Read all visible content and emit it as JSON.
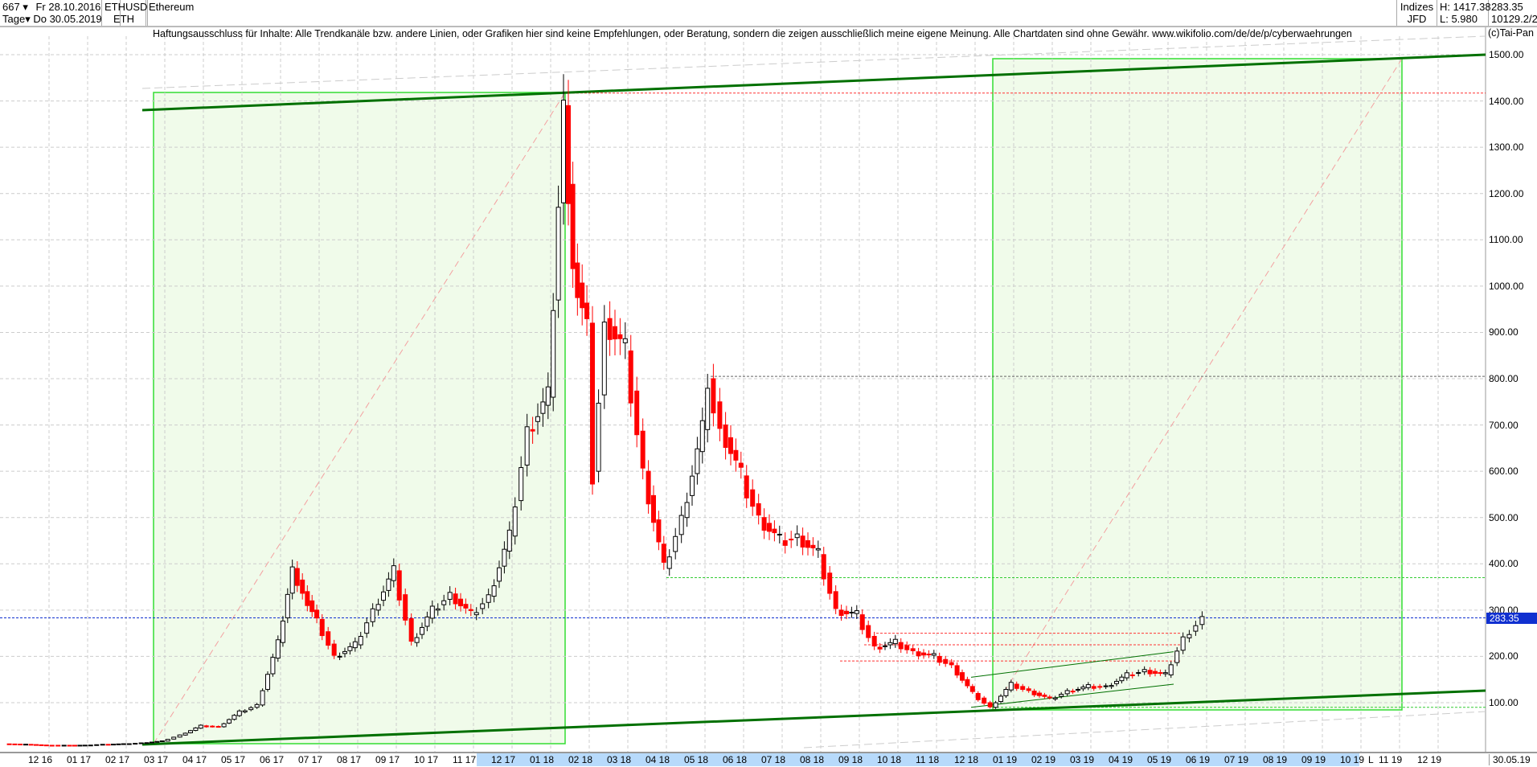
{
  "header": {
    "count": "667",
    "period": "Tage",
    "date_from": "Fr 28.10.2016",
    "date_to": "Do 30.05.2019",
    "symbol": "ETHUSD",
    "symbol_short": "ETH",
    "name": "Ethereum",
    "group": "Indizes",
    "source": "JFD",
    "high": "H: 1417.38",
    "low": "L: 5.980",
    "last": "283.35",
    "extra": "10129.2/2"
  },
  "disclaimer": "Haftungsausschluss für Inhalte: Alle Trendkanäle bzw. andere Linien, oder Grafiken hier sind keine Empfehlungen, oder Beratung, sondern die zeigen ausschließlich meine eigene Meinung. Alle Chartdaten sind ohne Gewähr.  www.wikifolio.com/de/de/p/cyberwaehrungen",
  "copyright": "(c)Tai-Pan",
  "footer": {
    "scale_mode": "L",
    "last_date": "30.05.19"
  },
  "colors": {
    "up": "#000000",
    "down": "#ff0000",
    "trend": "#007000",
    "box": "#33dd33",
    "box_fill": "#f0fbea",
    "current": "#1030d0"
  },
  "chart_data": {
    "type": "candlestick",
    "ylim": [
      0,
      1550
    ],
    "yticks": [
      "100.00",
      "200.00",
      "300.00",
      "400.00",
      "500.00",
      "600.00",
      "700.00",
      "800.00",
      "900.00",
      "1000.00",
      "1100.00",
      "1200.00",
      "1300.00",
      "1400.00",
      "1500.00"
    ],
    "xticks": [
      "12 16",
      "01 17",
      "02 17",
      "03 17",
      "04 17",
      "05 17",
      "06 17",
      "07 17",
      "08 17",
      "09 17",
      "10 17",
      "11 17",
      "12 17",
      "01 18",
      "02 18",
      "03 18",
      "04 18",
      "05 18",
      "06 18",
      "07 18",
      "08 18",
      "09 18",
      "10 18",
      "11 18",
      "12 18",
      "01 19",
      "02 19",
      "03 19",
      "04 19",
      "05 19",
      "06 19",
      "07 19",
      "08 19",
      "09 19",
      "10 19",
      "11 19",
      "12 19"
    ],
    "current_value": "283.35",
    "levels": [
      1417,
      805,
      370,
      90,
      283.35
    ],
    "closes": [
      [
        "2016-10-28",
        11
      ],
      [
        "2016-11-15",
        10
      ],
      [
        "2016-12-01",
        8
      ],
      [
        "2016-12-15",
        8
      ],
      [
        "2017-01-01",
        8
      ],
      [
        "2017-01-15",
        10
      ],
      [
        "2017-02-01",
        11
      ],
      [
        "2017-02-15",
        13
      ],
      [
        "2017-03-01",
        17
      ],
      [
        "2017-03-15",
        30
      ],
      [
        "2017-04-01",
        50
      ],
      [
        "2017-04-15",
        48
      ],
      [
        "2017-05-01",
        80
      ],
      [
        "2017-05-15",
        95
      ],
      [
        "2017-06-01",
        230
      ],
      [
        "2017-06-12",
        390
      ],
      [
        "2017-06-20",
        340
      ],
      [
        "2017-07-01",
        280
      ],
      [
        "2017-07-15",
        200
      ],
      [
        "2017-08-01",
        225
      ],
      [
        "2017-08-15",
        300
      ],
      [
        "2017-09-01",
        385
      ],
      [
        "2017-09-15",
        230
      ],
      [
        "2017-10-01",
        300
      ],
      [
        "2017-10-15",
        335
      ],
      [
        "2017-11-01",
        290
      ],
      [
        "2017-11-15",
        330
      ],
      [
        "2017-12-01",
        460
      ],
      [
        "2017-12-15",
        690
      ],
      [
        "2018-01-01",
        760
      ],
      [
        "2018-01-13",
        1390
      ],
      [
        "2018-01-20",
        1050
      ],
      [
        "2018-02-01",
        920
      ],
      [
        "2018-02-06",
        600
      ],
      [
        "2018-02-15",
        930
      ],
      [
        "2018-03-01",
        860
      ],
      [
        "2018-03-15",
        600
      ],
      [
        "2018-04-01",
        390
      ],
      [
        "2018-04-15",
        500
      ],
      [
        "2018-05-01",
        690
      ],
      [
        "2018-05-05",
        800
      ],
      [
        "2018-05-15",
        700
      ],
      [
        "2018-06-01",
        590
      ],
      [
        "2018-06-15",
        500
      ],
      [
        "2018-07-01",
        450
      ],
      [
        "2018-07-15",
        460
      ],
      [
        "2018-08-01",
        420
      ],
      [
        "2018-08-15",
        300
      ],
      [
        "2018-09-01",
        290
      ],
      [
        "2018-09-15",
        220
      ],
      [
        "2018-10-01",
        230
      ],
      [
        "2018-10-15",
        210
      ],
      [
        "2018-11-01",
        200
      ],
      [
        "2018-11-15",
        180
      ],
      [
        "2018-12-01",
        120
      ],
      [
        "2018-12-15",
        90
      ],
      [
        "2019-01-01",
        140
      ],
      [
        "2019-01-15",
        125
      ],
      [
        "2019-02-01",
        108
      ],
      [
        "2019-02-15",
        125
      ],
      [
        "2019-03-01",
        135
      ],
      [
        "2019-03-15",
        135
      ],
      [
        "2019-04-01",
        160
      ],
      [
        "2019-04-15",
        170
      ],
      [
        "2019-05-01",
        160
      ],
      [
        "2019-05-15",
        240
      ],
      [
        "2019-05-30",
        283.35
      ]
    ]
  }
}
